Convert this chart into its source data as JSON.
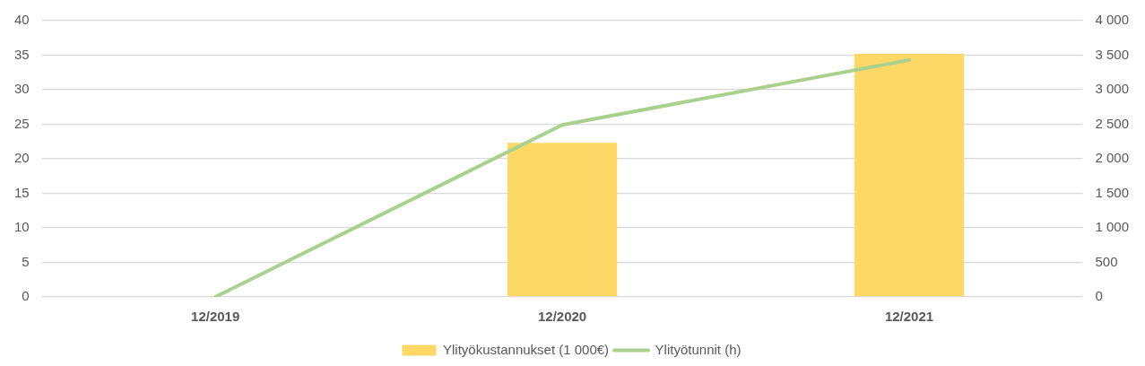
{
  "chart_data": {
    "type": "bar",
    "categories": [
      "12/2019",
      "12/2020",
      "12/2021"
    ],
    "series": [
      {
        "name": "Ylityökustannukset (1 000€)",
        "color": "#fdd866",
        "values": [
          null,
          22.3,
          35.2
        ]
      },
      {
        "name": "Ylityötunnit (h)",
        "type": "line",
        "axis": "y2",
        "color": "#a9d18e",
        "values": [
          0,
          2490,
          3430
        ]
      }
    ],
    "ylim": [
      0,
      40
    ],
    "yticks": [
      0,
      5,
      10,
      15,
      20,
      25,
      30,
      35,
      40
    ],
    "y2lim": [
      0,
      4000
    ],
    "y2ticks": [
      0,
      500,
      {
        "value": 1000,
        "label": "1 000"
      },
      {
        "value": 1500,
        "label": "1 500"
      },
      {
        "value": 2000,
        "label": "2 000"
      },
      {
        "value": 2500,
        "label": "2 500"
      },
      {
        "value": 3000,
        "label": "3 000"
      },
      {
        "value": 3500,
        "label": "3 500"
      },
      {
        "value": 4000,
        "label": "4 000"
      }
    ],
    "grid": "y",
    "legend": "bottom",
    "marker": "none"
  }
}
